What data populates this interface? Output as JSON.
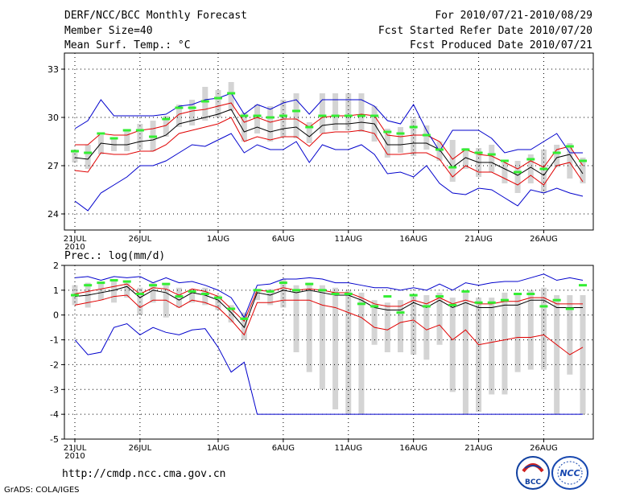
{
  "header": {
    "title": "DERF/NCC/BCC Monthly Forecast",
    "member_size": "Member Size=40",
    "variable": "Mean Surf. Temp.: °C",
    "period": "For 2010/07/21-2010/08/29",
    "refer_date": "Fcst Started Refer Date 2010/07/20",
    "produced_date": "Fcst Produced Date 2010/07/21"
  },
  "footer": {
    "url": "http://cmdp.ncc.cma.gov.cn",
    "grads": "GrADS: COLA/IGES",
    "logo_left_text": "BCC",
    "logo_right_text": "NCC"
  },
  "colors": {
    "mean": "#000000",
    "spread": "#e00000",
    "range": "#0000cc",
    "obs": "#33ee33",
    "box": "#d4d4d4",
    "grid": "#000000"
  },
  "chart_data": [
    {
      "type": "line",
      "title": "Mean Surf. Temp.: °C",
      "ylim": [
        23,
        34
      ],
      "yticks": [
        24,
        27,
        30,
        33
      ],
      "xtick_labels": [
        "21JUL",
        "26JUL",
        "1AUG",
        "6AUG",
        "11AUG",
        "16AUG",
        "21AUG",
        "26AUG"
      ],
      "xtick_days": [
        1,
        6,
        12,
        17,
        22,
        27,
        32,
        37
      ],
      "year_label": "2010",
      "days": 40,
      "series": [
        {
          "name": "ensemble mean",
          "color": "#000000",
          "values": [
            27.5,
            27.4,
            28.4,
            28.3,
            28.3,
            28.5,
            28.6,
            28.9,
            29.6,
            29.8,
            30.0,
            30.2,
            30.5,
            29.1,
            29.4,
            29.1,
            29.3,
            29.4,
            28.8,
            29.5,
            29.6,
            29.6,
            29.7,
            29.6,
            28.3,
            28.3,
            28.4,
            28.4,
            28.0,
            26.9,
            27.5,
            27.2,
            27.2,
            26.8,
            26.4,
            26.9,
            26.4,
            27.5,
            27.7,
            26.5,
            26.5
          ]
        },
        {
          "name": "upper spread",
          "color": "#e00000",
          "values": [
            28.3,
            28.3,
            29.0,
            28.9,
            28.9,
            29.2,
            29.3,
            29.5,
            30.2,
            30.4,
            30.5,
            30.7,
            30.9,
            29.7,
            30.0,
            29.7,
            29.9,
            29.9,
            29.4,
            30.0,
            30.1,
            30.1,
            30.2,
            30.1,
            28.9,
            28.8,
            28.9,
            28.9,
            28.5,
            27.4,
            28.0,
            27.7,
            27.6,
            27.2,
            26.8,
            27.3,
            26.9,
            28.0,
            28.2,
            27.0,
            26.9
          ]
        },
        {
          "name": "lower spread",
          "color": "#e00000",
          "values": [
            26.7,
            26.6,
            27.8,
            27.7,
            27.7,
            27.9,
            27.9,
            28.3,
            29.0,
            29.2,
            29.4,
            29.6,
            30.0,
            28.5,
            28.8,
            28.6,
            28.8,
            28.8,
            28.2,
            29.0,
            29.1,
            29.1,
            29.2,
            29.0,
            27.7,
            27.7,
            27.8,
            27.8,
            27.4,
            26.3,
            27.0,
            26.6,
            26.6,
            26.2,
            25.8,
            26.4,
            25.8,
            27.0,
            27.2,
            26.0,
            26.0
          ]
        },
        {
          "name": "ensemble max",
          "color": "#0000cc",
          "values": [
            29.3,
            29.8,
            31.1,
            30.1,
            30.1,
            30.1,
            30.1,
            30.2,
            30.7,
            30.8,
            31.1,
            31.2,
            31.5,
            30.2,
            30.8,
            30.5,
            30.9,
            31.1,
            30.2,
            31.1,
            31.1,
            31.1,
            31.1,
            30.7,
            29.8,
            29.6,
            30.8,
            29.2,
            27.9,
            29.2,
            29.2,
            29.2,
            28.7,
            27.8,
            28.0,
            28.0,
            28.5,
            29.0,
            27.8,
            27.8
          ]
        },
        {
          "name": "ensemble min",
          "color": "#0000cc",
          "values": [
            24.8,
            24.2,
            25.3,
            25.8,
            26.3,
            27.0,
            27.0,
            27.3,
            27.8,
            28.3,
            28.2,
            28.6,
            29.0,
            27.8,
            28.3,
            28.0,
            28.0,
            28.5,
            27.2,
            28.3,
            28.0,
            28.0,
            28.3,
            27.7,
            26.5,
            26.6,
            26.3,
            27.0,
            25.9,
            25.3,
            25.2,
            25.6,
            25.5,
            25.0,
            24.5,
            25.5,
            25.3,
            25.6,
            25.3,
            25.1
          ]
        }
      ],
      "boxes": {
        "low": [
          27.2,
          26.8,
          27.7,
          27.9,
          27.9,
          28.0,
          27.9,
          28.8,
          29.4,
          29.5,
          29.8,
          30.0,
          30.4,
          28.5,
          29.0,
          28.5,
          28.8,
          28.7,
          28.4,
          29.0,
          29.2,
          29.2,
          29.1,
          28.5,
          27.5,
          27.8,
          27.6,
          28.0,
          27.3,
          26.0,
          26.8,
          26.3,
          26.6,
          25.9,
          25.3,
          25.9,
          25.3,
          26.9,
          26.2,
          25.9
        ],
        "high": [
          28.0,
          28.3,
          28.9,
          28.7,
          29.2,
          29.6,
          29.8,
          30.1,
          30.8,
          31.1,
          31.9,
          31.7,
          32.2,
          30.3,
          30.8,
          30.7,
          31.1,
          31.5,
          29.7,
          31.5,
          31.5,
          31.5,
          31.5,
          30.7,
          29.3,
          29.4,
          29.9,
          29.5,
          28.5,
          28.6,
          28.1,
          28.1,
          28.3,
          27.2,
          27.3,
          27.7,
          28.0,
          28.3,
          28.4,
          27.5
        ]
      },
      "obs": [
        27.9,
        27.8,
        29.0,
        28.7,
        29.2,
        29.2,
        28.8,
        29.9,
        30.6,
        30.6,
        31.0,
        31.2,
        31.5,
        30.1,
        30.1,
        30.0,
        30.1,
        30.4,
        29.4,
        30.1,
        30.1,
        30.1,
        30.1,
        30.1,
        29.1,
        29.0,
        29.4,
        28.9,
        28.0,
        26.9,
        28.0,
        27.8,
        27.7,
        27.3,
        26.6,
        27.4,
        26.8,
        27.8,
        28.2,
        27.3,
        27.0
      ]
    },
    {
      "type": "line",
      "title": "Prec.: log(mm/d)",
      "ylim": [
        -5,
        2
      ],
      "yticks": [
        -5,
        -4,
        -3,
        -2,
        -1,
        0,
        1,
        2
      ],
      "xtick_labels": [
        "21JUL",
        "26JUL",
        "1AUG",
        "6AUG",
        "11AUG",
        "16AUG",
        "21AUG",
        "26AUG"
      ],
      "xtick_days": [
        1,
        6,
        12,
        17,
        22,
        27,
        32,
        37
      ],
      "year_label": "2010",
      "days": 40,
      "series": [
        {
          "name": "ensemble mean",
          "color": "#000000",
          "values": [
            0.75,
            0.8,
            0.9,
            1.0,
            1.15,
            0.7,
            1.0,
            0.9,
            0.6,
            0.9,
            0.8,
            0.6,
            0.1,
            -0.5,
            0.9,
            0.8,
            1.0,
            0.9,
            1.0,
            0.9,
            0.8,
            0.8,
            0.6,
            0.3,
            0.2,
            0.2,
            0.5,
            0.3,
            0.6,
            0.3,
            0.5,
            0.3,
            0.3,
            0.4,
            0.4,
            0.6,
            0.6,
            0.3,
            0.3,
            0.3,
            0.9
          ]
        },
        {
          "name": "upper spread",
          "color": "#e00000",
          "values": [
            0.85,
            0.95,
            1.05,
            1.15,
            1.25,
            0.85,
            1.1,
            1.05,
            0.8,
            1.05,
            0.95,
            0.75,
            0.25,
            -0.25,
            1.0,
            0.95,
            1.1,
            1.0,
            1.05,
            1.0,
            0.9,
            0.9,
            0.7,
            0.45,
            0.35,
            0.35,
            0.6,
            0.45,
            0.7,
            0.45,
            0.6,
            0.45,
            0.45,
            0.55,
            0.55,
            0.7,
            0.7,
            0.45,
            0.45,
            0.45,
            1.0
          ]
        },
        {
          "name": "lower spread",
          "color": "#e00000",
          "values": [
            0.4,
            0.5,
            0.6,
            0.75,
            0.8,
            0.3,
            0.6,
            0.6,
            0.3,
            0.6,
            0.5,
            0.3,
            -0.2,
            -0.8,
            0.5,
            0.5,
            0.6,
            0.6,
            0.6,
            0.4,
            0.3,
            0.1,
            -0.1,
            -0.5,
            -0.6,
            -0.3,
            -0.2,
            -0.6,
            -0.4,
            -1.0,
            -0.6,
            -1.2,
            -1.1,
            -1.0,
            -0.9,
            -0.9,
            -0.8,
            -1.2,
            -1.6,
            -1.3,
            -0.9
          ]
        },
        {
          "name": "ensemble max",
          "color": "#0000cc",
          "values": [
            1.5,
            1.55,
            1.4,
            1.55,
            1.5,
            1.55,
            1.3,
            1.5,
            1.3,
            1.35,
            1.2,
            1.0,
            0.7,
            -0.1,
            1.2,
            1.25,
            1.45,
            1.45,
            1.5,
            1.45,
            1.3,
            1.3,
            1.2,
            1.1,
            1.1,
            1.0,
            1.1,
            1.0,
            1.25,
            1.0,
            1.3,
            1.2,
            1.3,
            1.35,
            1.35,
            1.5,
            1.65,
            1.4,
            1.5,
            1.4,
            1.7
          ]
        },
        {
          "name": "ensemble min",
          "color": "#0000cc",
          "values": [
            -1.0,
            -1.6,
            -1.5,
            -0.5,
            -0.35,
            -0.8,
            -0.5,
            -0.7,
            -0.8,
            -0.6,
            -0.55,
            -1.3,
            -2.3,
            -1.9,
            -4.0,
            -4.0,
            -4.0,
            -4.0,
            -4.0,
            -4.0,
            -4.0,
            -4.0,
            -4.0,
            -4.0,
            -4.0,
            -4.0,
            -4.0,
            -4.0,
            -4.0,
            -4.0,
            -4.0,
            -4.0,
            -4.0,
            -4.0,
            -4.0,
            -4.0,
            -4.0,
            -4.0,
            -4.0,
            -4.0
          ]
        }
      ],
      "boxes": {
        "low": [
          0.4,
          0.3,
          0.6,
          0.5,
          0.7,
          0.0,
          0.5,
          -0.1,
          0.3,
          0.5,
          0.4,
          0.2,
          -0.3,
          -1.0,
          0.6,
          0.4,
          0.3,
          -1.5,
          -2.3,
          -3.0,
          -3.8,
          -4.0,
          -4.0,
          -1.2,
          -1.5,
          -1.5,
          -1.6,
          -1.8,
          -1.2,
          -3.1,
          -4.0,
          -3.9,
          -3.2,
          -3.2,
          -2.3,
          -2.2,
          -2.2,
          -4.0,
          -2.4,
          -4.0,
          0.0
        ],
        "high": [
          1.2,
          1.3,
          1.35,
          1.45,
          1.3,
          1.1,
          1.3,
          1.2,
          1.1,
          1.05,
          1.1,
          0.8,
          0.4,
          0.1,
          1.05,
          1.05,
          1.45,
          1.2,
          1.3,
          1.2,
          1.1,
          1.0,
          0.9,
          0.6,
          0.5,
          0.6,
          0.85,
          0.8,
          0.9,
          0.7,
          0.9,
          0.7,
          0.7,
          0.9,
          0.8,
          1.0,
          1.1,
          0.8,
          0.8,
          0.8,
          1.85
        ]
      },
      "obs": [
        0.8,
        1.2,
        1.3,
        1.4,
        1.35,
        0.85,
        1.2,
        1.25,
        0.75,
        0.95,
        0.85,
        0.7,
        0.25,
        -0.15,
        1.0,
        0.95,
        1.3,
        1.0,
        1.25,
        1.0,
        0.85,
        0.85,
        0.45,
        0.35,
        0.75,
        0.1,
        0.8,
        0.35,
        0.75,
        0.4,
        0.95,
        0.5,
        0.5,
        0.6,
        0.85,
        0.85,
        0.35,
        0.6,
        0.25,
        1.2,
        1.2
      ]
    }
  ]
}
